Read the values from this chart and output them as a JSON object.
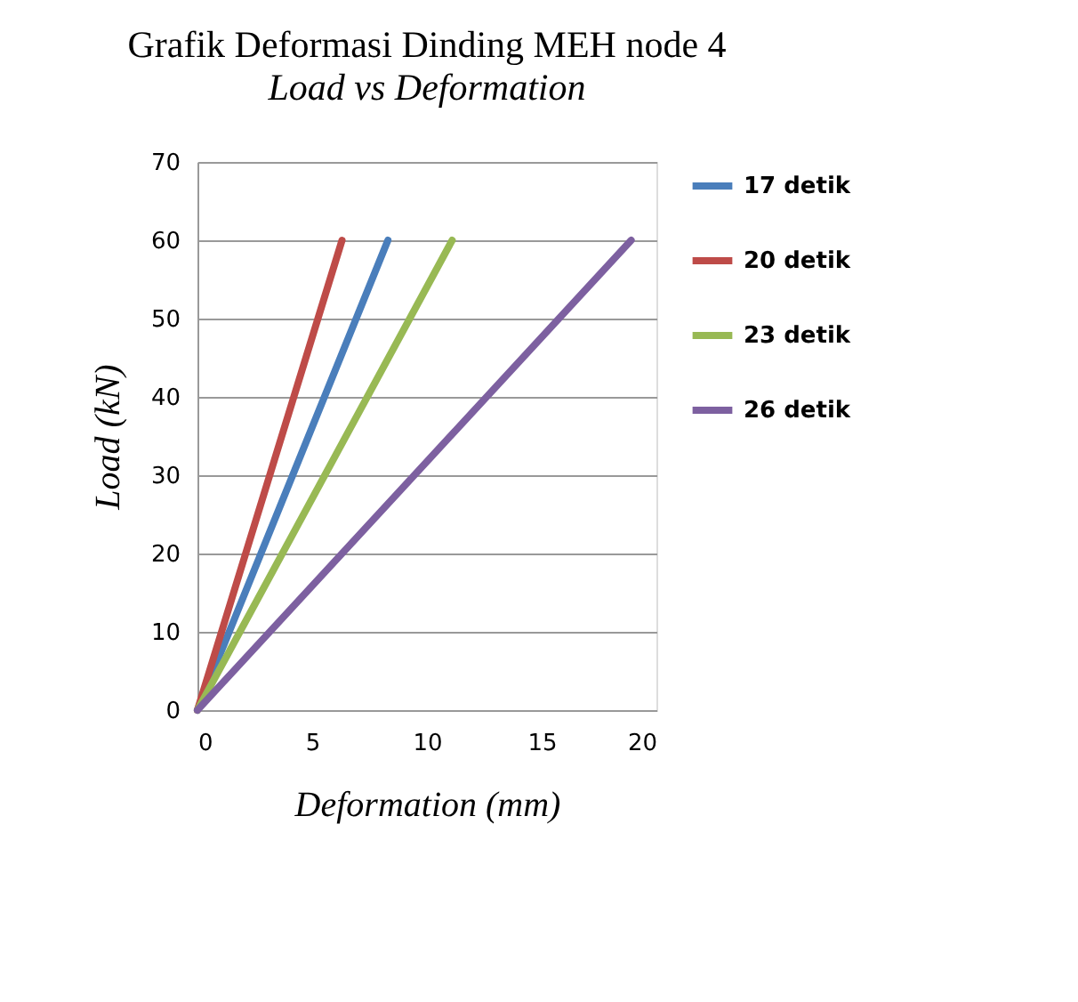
{
  "chart_data": {
    "type": "line",
    "title": "Grafik Deformasi Dinding MEH node 4",
    "subtitle": "Load vs Deformation",
    "xlabel": "Deformation (mm)",
    "ylabel": "Load (kN)",
    "xlim": [
      0,
      20
    ],
    "xticks": [
      0,
      5,
      10,
      15,
      20
    ],
    "ylim": [
      0,
      70
    ],
    "yticks": [
      0,
      10,
      20,
      30,
      40,
      50,
      60,
      70
    ],
    "grid": "y",
    "legend": "right",
    "marker": "none",
    "line_style": "solid",
    "series": [
      {
        "name": "17 detik",
        "color": "#4a7ebb",
        "x": [
          0,
          8.3
        ],
        "values": [
          0,
          60
        ]
      },
      {
        "name": "20 detik",
        "color": "#be4b48",
        "x": [
          0,
          6.3
        ],
        "values": [
          0,
          60
        ]
      },
      {
        "name": "23 detik",
        "color": "#98b954",
        "x": [
          0,
          11.1
        ],
        "values": [
          0,
          60
        ]
      },
      {
        "name": "26 detik",
        "color": "#7d60a0",
        "x": [
          0,
          18.9
        ],
        "values": [
          0,
          60
        ]
      }
    ]
  }
}
